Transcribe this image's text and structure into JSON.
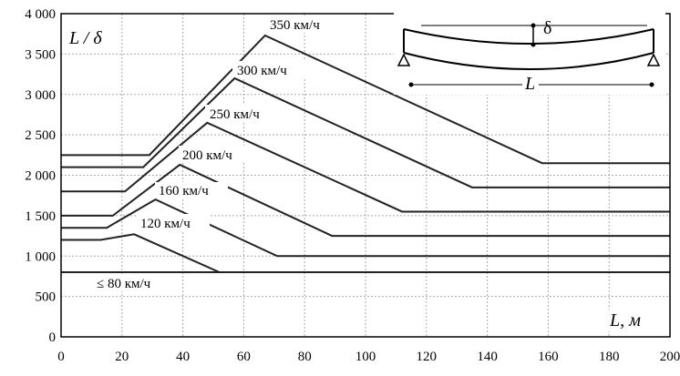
{
  "chart_data": {
    "type": "line",
    "xlabel": "L, м",
    "ylabel": "L / δ",
    "xlim": [
      0,
      200
    ],
    "ylim": [
      0,
      4000
    ],
    "x_ticks": [
      "0",
      "20",
      "40",
      "60",
      "80",
      "100",
      "120",
      "140",
      "160",
      "180",
      "200"
    ],
    "y_ticks": [
      "0",
      "500",
      "1 000",
      "1 500",
      "2 000",
      "2 500",
      "3 000",
      "3 500",
      "4 000"
    ],
    "grid": true,
    "series": [
      {
        "name": "350 км/ч",
        "points": [
          [
            0,
            2250
          ],
          [
            29,
            2250
          ],
          [
            67,
            3730
          ],
          [
            158,
            2150
          ],
          [
            200,
            2150
          ]
        ]
      },
      {
        "name": "300 км/ч",
        "points": [
          [
            0,
            2100
          ],
          [
            27,
            2100
          ],
          [
            57,
            3200
          ],
          [
            135,
            1850
          ],
          [
            200,
            1850
          ]
        ]
      },
      {
        "name": "250 км/ч",
        "points": [
          [
            0,
            1800
          ],
          [
            21,
            1800
          ],
          [
            48,
            2650
          ],
          [
            112,
            1550
          ],
          [
            200,
            1550
          ]
        ]
      },
      {
        "name": "200 км/ч",
        "points": [
          [
            0,
            1500
          ],
          [
            17,
            1500
          ],
          [
            39,
            2130
          ],
          [
            89,
            1250
          ],
          [
            200,
            1250
          ]
        ]
      },
      {
        "name": "160 км/ч",
        "points": [
          [
            0,
            1350
          ],
          [
            15,
            1350
          ],
          [
            31,
            1700
          ],
          [
            71,
            1000
          ],
          [
            200,
            1000
          ]
        ]
      },
      {
        "name": "120 км/ч",
        "points": [
          [
            0,
            1200
          ],
          [
            13,
            1200
          ],
          [
            24,
            1270
          ],
          [
            52,
            800
          ],
          [
            200,
            800
          ]
        ]
      },
      {
        "name": "≤ 80 км/ч",
        "points": [
          [
            0,
            800
          ],
          [
            200,
            800
          ]
        ]
      }
    ],
    "inset_labels": {
      "deflection": "δ",
      "span": "L"
    }
  }
}
